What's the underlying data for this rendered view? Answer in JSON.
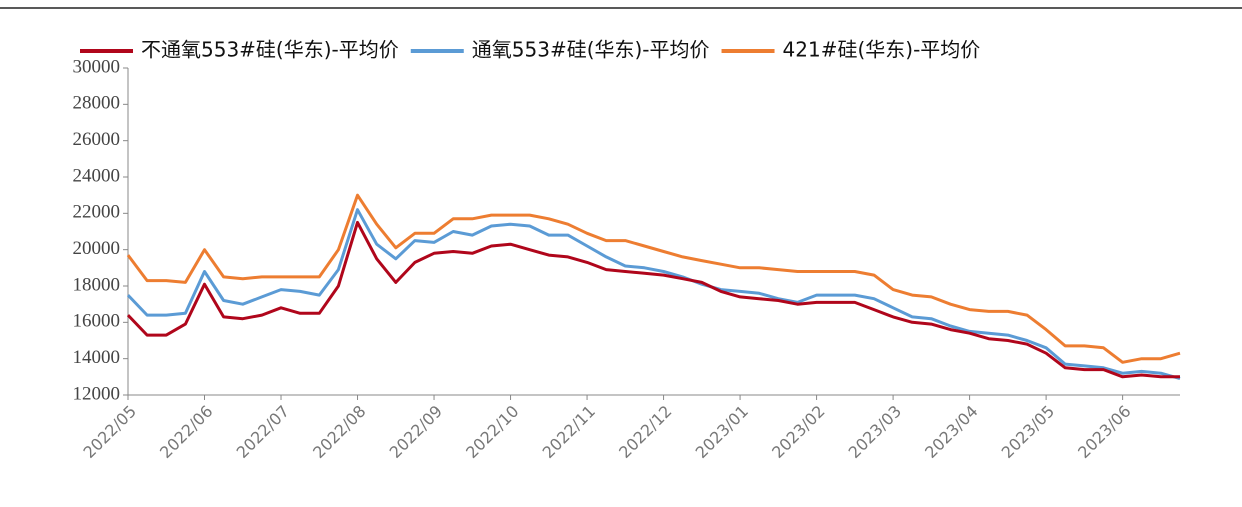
{
  "chart_data": {
    "type": "line",
    "categories": [
      "2022/05",
      null,
      null,
      null,
      "2022/06",
      null,
      null,
      null,
      "2022/07",
      null,
      null,
      null,
      "2022/08",
      null,
      null,
      null,
      "2022/09",
      null,
      null,
      null,
      "2022/10",
      null,
      null,
      null,
      "2022/11",
      null,
      null,
      null,
      "2022/12",
      null,
      null,
      null,
      "2023/01",
      null,
      null,
      null,
      "2023/02",
      null,
      null,
      null,
      "2023/03",
      null,
      null,
      null,
      "2023/04",
      null,
      null,
      null,
      "2023/05",
      null,
      null,
      null,
      "2023/06",
      null,
      null,
      null
    ],
    "series": [
      {
        "name": "不通氧553#硅(华东)-平均价",
        "color": "#b0061b",
        "values": [
          16400,
          15300,
          15300,
          15900,
          18100,
          16300,
          16200,
          16400,
          16800,
          16500,
          16500,
          18000,
          21500,
          19500,
          18200,
          19300,
          19800,
          19900,
          19800,
          20200,
          20300,
          20000,
          19700,
          19600,
          19300,
          18900,
          18800,
          18700,
          18600,
          18400,
          18200,
          17700,
          17400,
          17300,
          17200,
          17000,
          17100,
          17100,
          17100,
          16700,
          16300,
          16000,
          15900,
          15600,
          15400,
          15100,
          15000,
          14800,
          14300,
          13500,
          13400,
          13400,
          13000,
          13100,
          13000,
          13000
        ]
      },
      {
        "name": "通氧553#硅(华东)-平均价",
        "color": "#5b9bd5",
        "values": [
          17500,
          16400,
          16400,
          16500,
          18800,
          17200,
          17000,
          17400,
          17800,
          17700,
          17500,
          18900,
          22200,
          20300,
          19500,
          20500,
          20400,
          21000,
          20800,
          21300,
          21400,
          21300,
          20800,
          20800,
          20200,
          19600,
          19100,
          19000,
          18800,
          18500,
          18100,
          17800,
          17700,
          17600,
          17300,
          17100,
          17500,
          17500,
          17500,
          17300,
          16800,
          16300,
          16200,
          15800,
          15500,
          15400,
          15300,
          15000,
          14600,
          13700,
          13600,
          13500,
          13200,
          13300,
          13200,
          12900
        ]
      },
      {
        "name": "421#硅(华东)-平均价",
        "color": "#ed7d31",
        "values": [
          19700,
          18300,
          18300,
          18200,
          20000,
          18500,
          18400,
          18500,
          18500,
          18500,
          18500,
          20000,
          23000,
          21400,
          20100,
          20900,
          20900,
          21700,
          21700,
          21900,
          21900,
          21900,
          21700,
          21400,
          20900,
          20500,
          20500,
          20200,
          19900,
          19600,
          19400,
          19200,
          19000,
          19000,
          18900,
          18800,
          18800,
          18800,
          18800,
          18600,
          17800,
          17500,
          17400,
          17000,
          16700,
          16600,
          16600,
          16400,
          15600,
          14700,
          14700,
          14600,
          13800,
          14000,
          14000,
          14300
        ]
      }
    ],
    "ylim": [
      12000,
      30000
    ],
    "yticks": [
      12000,
      14000,
      16000,
      18000,
      20000,
      22000,
      24000,
      26000,
      28000,
      30000
    ],
    "legend": "top"
  }
}
